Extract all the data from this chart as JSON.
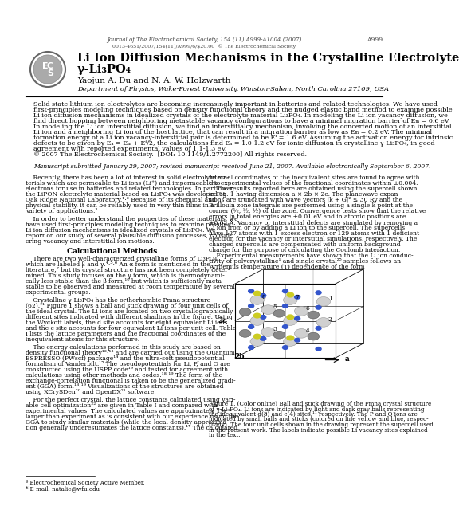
{
  "journal_line1": "Journal of The Electrochemical Society, 154 (11) A999-A1004 (2007)",
  "journal_line2": "0013-4651/2007/154(11)/A999/6/$20.00  © The Electrochemical Society",
  "page_number": "A999",
  "title_line1": "Li Ion Diffusion Mechanisms in the Crystalline Electrolyte",
  "title_line2": "γ-Li₃PO₄",
  "authors": "Yaojun A. Du and N. A. W. Holzwarth",
  "affiliation": "Department of Physics, Wake-Forest University, Winston-Salem, North Carolina 27109, USA",
  "abstract_lines": [
    "Solid state lithium ion electrolytes are becoming increasingly important in batteries and related technologies. We have used",
    "first-principles modeling techniques based on density functional theory and the nudged elastic band method to examine possible",
    "Li ion diffusion mechanisms in idealized crystals of the electrolyte material Li₃PO₄. In modeling the Li ion vacancy diffusion, we",
    "find direct hopping between neighboring metastable vacancy configurations to have a minimal migration barrier of Eₘ = 0.6 eV.",
    "In modeling the Li ion interstitial diffusion, we find an interstitialcy mechanism, involving the concerted motion of an interstitial",
    "Li ion and a neighboring Li ion of the host lattice, that can result in a migration barrier as low as Eₘ = 0.2 eV. The minimal",
    "formation energy of a Li ion vacancy-interstitial pair is determined to be Eᶠ = 1.6 eV. Assuming the activation energy for intrinsic",
    "defects to be given by Eₐ = Eₘ + Eᶠ/2, the calculations find Eₐ = 1.0-1.2 eV for ionic diffusion in crystalline γ-Li₃PO₄, in good",
    "agreement with reported experimental values of 1.1-1.3 eV.",
    "© 2007 The Electrochemical Society.  [DOI: 10.1149/1.2772200] All rights reserved."
  ],
  "manuscript_line": "Manuscript submitted January 29, 2007; revised manuscript received June 21, 2007. Available electronically September 6, 2007.",
  "col1_lines": [
    "    Recently, there has been a lot of interest in solid electrolyte ma-",
    "terials which are permeable to Li ions (Li⁺) and impermeable to",
    "electrons for use in batteries and related technologies. In particular,",
    "the LiPON electrolyte material based on Li₃PO₄ was developed at",
    "Oak Ridge National Laboratory.¹⋅² Because of its chemical and",
    "physical stability, it can be reliably used in very thin films in a",
    "variety of applications.³",
    "",
    "    In order to better understand the properties of these materials, we",
    "have used first-principles modeling techniques to examine possible",
    "Li ion diffusion mechanisms in idealized crystals of Li₃PO₄. We",
    "report on our study of several plausible diffusion processes, consid-",
    "ering vacancy and interstitial ion motions.",
    "",
    "SECTION:Calculational Methods",
    "",
    "    There are two well-characterized crystalline forms of Li₃PO₄",
    "which are labeled β and γ.⁴⋅⁵⋅⁶ An α form is mentioned in the",
    "literature,⁷ but its crystal structure has not been completely deter-",
    "mined. This study focuses on the γ form, which is thermodynami-",
    "cally less stable than the β form,¹⁰ but which is sufficiently meta-",
    "stable to be observed and measured at room temperature by several",
    "experimental groups.",
    "",
    "    Crystalline γ-Li₃PO₄ has the orthorhombic Pmna structure",
    "(62).¹¹ Figure 1 shows a ball and stick drawing of four unit cells of",
    "the ideal crystal. The Li ions are located on two crystallographically",
    "different sites indicated with different shadings in the figure. Using",
    "the Wyckoff labels, the d site accounts for eight equivalent Li ions",
    "and the c site accounts for four equivalent Li ions per unit cell. Table",
    "I lists the lattice parameters and the fractional coordinates of the",
    "inequivalent atoms for this structure.",
    "",
    "    The energy calculations performed in this study are based on",
    "density functional theory¹²⋅¹³ and are carried out using the Quantum",
    "ESPRESSO (PWscf) package¹⁴ and the ultra-soft pseudopotential",
    "formalism of Vanderbilt.¹⁵ The pseudopotentials for Li, P, and O are",
    "constructed using the USPP code¹⁹ and tested for agreement with",
    "calculations using other methods and codes.¹⁸⋅¹⁹ The form of the",
    "exchange-correlation functional is taken to be the generalized gradi-",
    "ent (GGA) form.¹⁸⋅¹⁹ Visualizations of the structures are obtained",
    "using XCrySDen²⁰ and OpenDX²¹ software.",
    "",
    "    For the perfect crystal, the lattice constants calculated using vari-",
    "able cell optimization²² are given in Table I and compared with",
    "experimental values. The calculated values are approximately 1%",
    "larger than experiment as is consistent with our experience using the",
    "GGA to study similar materials (while the local density approxima-",
    "tion generally underestimates the lattice constants).¹⁷ The calculated"
  ],
  "col2_lines": [
    "internal coordinates of the inequivalent sites are found to agree with",
    "the experimental values of the fractional coordinates within ±0.004.",
    "    The results reported here are obtained using the supercell shown",
    "in Fig. 1 having dimension a × 2b × 2c. The planewave expan-",
    "sions are truncated with wave vectors |k + G|² ≤ 30 Ry and the",
    "Brillouin zone integrals are performed using a single k point at the",
    "corner (½, ½, ½) of the zone. Convergence tests show that the relative",
    "errors in total energies are ±0.01 eV and in atomic positions are",
    "±0.02 Å. Vacancy or interstitial defects are simulated by removing a",
    "Li ion from or by adding a Li ion to the supercell. The supercells",
    "have 127 atoms with 1 excess electron or 129 atoms with 1 deficient",
    "electron for the vacancy or interstitial simulations, respectively. The",
    "charged supercells are compensated with uniform background",
    "charge for the purpose of calculating the Coulomb interaction.",
    "    Experimental measurements have shown that the Li ion conduc-",
    "tivity of polycrystalline¹ and single crystal²⁵ samples follows an",
    "Arrhenius temperature (T) dependence of the form"
  ],
  "figure_caption_lines": [
    "Figure 1. (Color online) Ball and stick drawing of the Pmna crystal structure",
    "of γ-Li₃PO₄. Li ions are indicated by light and dark gray balls representing",
    "the inequivalent d(8) and c(4) sites,¹¹ respectively. The P and O ions are",
    "indicated by small balls and sticks (colored on line yellow and blue, respec-",
    "tively). The four unit cells shown in the drawing represent the supercell used",
    "in the present work. The labels indicate possible Li vacancy sites explained",
    "in the text."
  ],
  "footnote1": "ª Electrochemical Society Active Member.",
  "footnote2": "* E-mail: natalie@wfu.edu"
}
